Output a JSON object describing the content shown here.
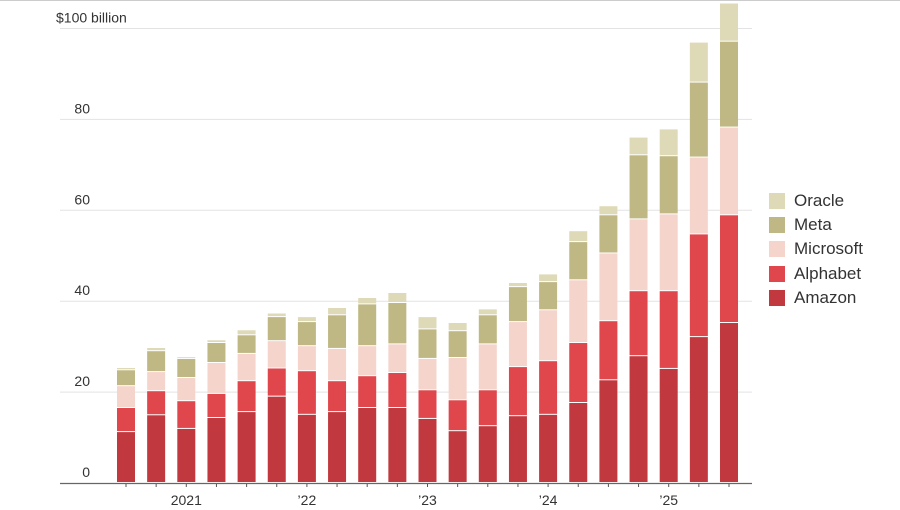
{
  "chart_data": {
    "type": "bar",
    "stacked": true,
    "y_unit_label": "$100 billion",
    "ylim": [
      0,
      105
    ],
    "yticks": [
      0,
      20,
      40,
      60,
      80,
      100
    ],
    "ytick_labels": [
      "0",
      "20",
      "40",
      "60",
      "80",
      "$100 billion"
    ],
    "grid": true,
    "legend_position": "right",
    "x_tick_labels": [
      {
        "bar_index": 2,
        "label": "2021"
      },
      {
        "bar_index": 6,
        "label": "’22"
      },
      {
        "bar_index": 10,
        "label": "’23"
      },
      {
        "bar_index": 14,
        "label": "’24"
      },
      {
        "bar_index": 18,
        "label": "’25"
      }
    ],
    "bar_count": 21,
    "series": [
      {
        "name": "Amazon",
        "color": "#c1393f",
        "values": [
          11.2,
          14.9,
          11.9,
          14.3,
          15.6,
          19.0,
          15.0,
          15.6,
          16.5,
          16.5,
          14.1,
          11.4,
          12.5,
          14.7,
          15.0,
          17.6,
          22.6,
          27.9,
          25.1,
          32.1,
          35.2
        ]
      },
      {
        "name": "Alphabet",
        "color": "#e0474c",
        "values": [
          5.3,
          5.3,
          6.1,
          5.3,
          6.8,
          6.2,
          9.6,
          6.8,
          7.0,
          7.7,
          6.3,
          6.8,
          7.9,
          10.8,
          11.8,
          13.2,
          13.0,
          14.3,
          17.1,
          22.6,
          23.7
        ]
      },
      {
        "name": "Microsoft",
        "color": "#f5d4cc",
        "values": [
          4.8,
          4.2,
          5.1,
          6.8,
          6.0,
          6.0,
          5.5,
          7.1,
          6.6,
          6.3,
          6.9,
          9.3,
          10.1,
          9.9,
          11.2,
          13.8,
          14.9,
          15.8,
          16.9,
          16.9,
          19.3
        ]
      },
      {
        "name": "Meta",
        "color": "#bfb884",
        "values": [
          3.5,
          4.6,
          4.2,
          4.4,
          4.1,
          5.3,
          5.3,
          7.4,
          9.2,
          9.1,
          6.5,
          5.9,
          6.4,
          7.7,
          6.2,
          8.4,
          8.4,
          14.1,
          12.8,
          16.5,
          18.9
        ]
      },
      {
        "name": "Oracle",
        "color": "#dedab8",
        "values": [
          0.5,
          0.7,
          0.4,
          0.6,
          1.1,
          0.8,
          1.1,
          1.6,
          1.4,
          2.2,
          2.7,
          1.8,
          1.3,
          0.9,
          1.7,
          2.4,
          2.0,
          3.9,
          5.9,
          8.8,
          8.4
        ]
      }
    ],
    "legend_order": [
      "Oracle",
      "Meta",
      "Microsoft",
      "Alphabet",
      "Amazon"
    ]
  }
}
